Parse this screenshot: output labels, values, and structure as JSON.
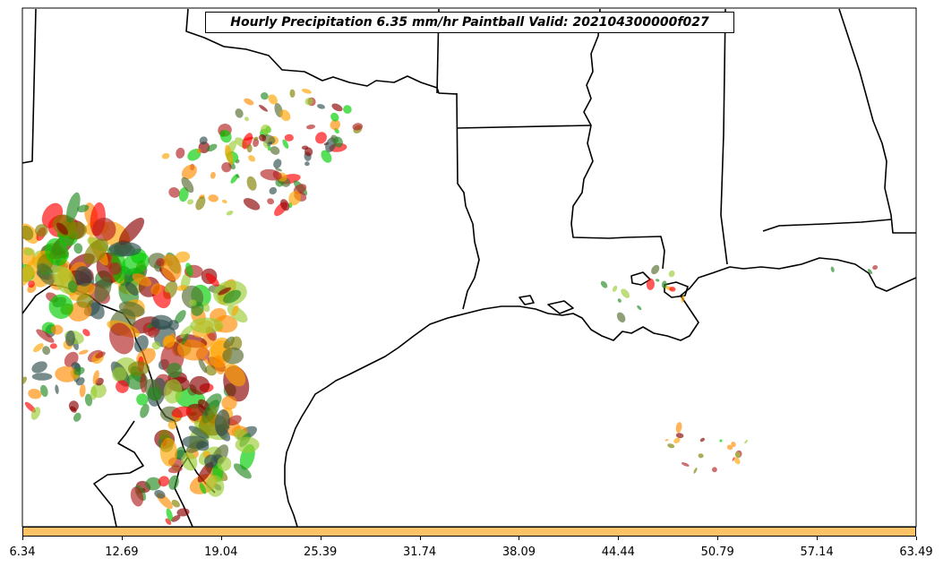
{
  "title": "Hourly Precipitation 6.35 mm/hr Paintball Valid: 202104300000f027",
  "colorbar": {
    "fill_color": "#ffc266",
    "ticks": [
      "6.34",
      "12.69",
      "19.04",
      "25.39",
      "31.74",
      "38.09",
      "44.44",
      "50.79",
      "57.14",
      "63.49"
    ]
  },
  "map": {
    "border_color": "#000000",
    "paintball_member_colors": [
      "#ff0000",
      "#ff8c00",
      "#00cc00",
      "#8b0000",
      "#556b2f",
      "#9acd32",
      "#2f4f4f",
      "#228b22",
      "#ffa500",
      "#b22222",
      "#808000"
    ]
  }
}
